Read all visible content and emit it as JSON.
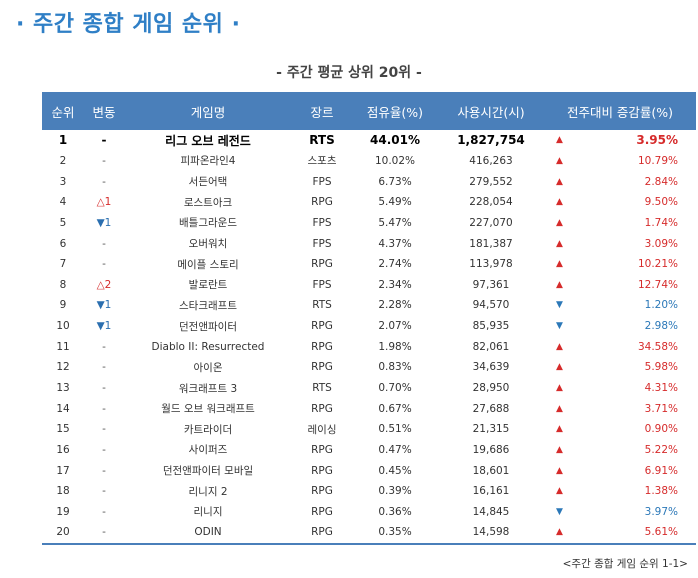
{
  "title": "· 주간 종합 게임 순위 ·",
  "subtitle": "- 주간 평균 상위 20위 -",
  "headers": {
    "rank": "순위",
    "change": "변동",
    "game": "게임명",
    "genre": "장르",
    "share": "점유율(%)",
    "hours": "사용시간(시)",
    "trend": "전주대비 증감률(%)"
  },
  "rows": [
    {
      "rank": "1",
      "change": "-",
      "change_dir": "same",
      "game": "리그 오브 레전드",
      "genre": "RTS",
      "share": "44.01%",
      "hours": "1,827,754",
      "trend": "up",
      "rate": "3.95%"
    },
    {
      "rank": "2",
      "change": "-",
      "change_dir": "same",
      "game": "피파온라인4",
      "genre": "스포츠",
      "share": "10.02%",
      "hours": "416,263",
      "trend": "up",
      "rate": "10.79%"
    },
    {
      "rank": "3",
      "change": "-",
      "change_dir": "same",
      "game": "서든어택",
      "genre": "FPS",
      "share": "6.73%",
      "hours": "279,552",
      "trend": "up",
      "rate": "2.84%"
    },
    {
      "rank": "4",
      "change": "△1",
      "change_dir": "up",
      "game": "로스트아크",
      "genre": "RPG",
      "share": "5.49%",
      "hours": "228,054",
      "trend": "up",
      "rate": "9.50%"
    },
    {
      "rank": "5",
      "change": "▼1",
      "change_dir": "down",
      "game": "배틀그라운드",
      "genre": "FPS",
      "share": "5.47%",
      "hours": "227,070",
      "trend": "up",
      "rate": "1.74%"
    },
    {
      "rank": "6",
      "change": "-",
      "change_dir": "same",
      "game": "오버워치",
      "genre": "FPS",
      "share": "4.37%",
      "hours": "181,387",
      "trend": "up",
      "rate": "3.09%"
    },
    {
      "rank": "7",
      "change": "-",
      "change_dir": "same",
      "game": "메이플 스토리",
      "genre": "RPG",
      "share": "2.74%",
      "hours": "113,978",
      "trend": "up",
      "rate": "10.21%"
    },
    {
      "rank": "8",
      "change": "△2",
      "change_dir": "up",
      "game": "발로란트",
      "genre": "FPS",
      "share": "2.34%",
      "hours": "97,361",
      "trend": "up",
      "rate": "12.74%"
    },
    {
      "rank": "9",
      "change": "▼1",
      "change_dir": "down",
      "game": "스타크래프트",
      "genre": "RTS",
      "share": "2.28%",
      "hours": "94,570",
      "trend": "down",
      "rate": "1.20%"
    },
    {
      "rank": "10",
      "change": "▼1",
      "change_dir": "down",
      "game": "던전앤파이터",
      "genre": "RPG",
      "share": "2.07%",
      "hours": "85,935",
      "trend": "down",
      "rate": "2.98%"
    },
    {
      "rank": "11",
      "change": "-",
      "change_dir": "same",
      "game": "Diablo II: Resurrected",
      "genre": "RPG",
      "share": "1.98%",
      "hours": "82,061",
      "trend": "up",
      "rate": "34.58%"
    },
    {
      "rank": "12",
      "change": "-",
      "change_dir": "same",
      "game": "아이온",
      "genre": "RPG",
      "share": "0.83%",
      "hours": "34,639",
      "trend": "up",
      "rate": "5.98%"
    },
    {
      "rank": "13",
      "change": "-",
      "change_dir": "same",
      "game": "워크래프트 3",
      "genre": "RTS",
      "share": "0.70%",
      "hours": "28,950",
      "trend": "up",
      "rate": "4.31%"
    },
    {
      "rank": "14",
      "change": "-",
      "change_dir": "same",
      "game": "월드 오브 워크래프트",
      "genre": "RPG",
      "share": "0.67%",
      "hours": "27,688",
      "trend": "up",
      "rate": "3.71%"
    },
    {
      "rank": "15",
      "change": "-",
      "change_dir": "same",
      "game": "카트라이더",
      "genre": "레이싱",
      "share": "0.51%",
      "hours": "21,315",
      "trend": "up",
      "rate": "0.90%"
    },
    {
      "rank": "16",
      "change": "-",
      "change_dir": "same",
      "game": "사이퍼즈",
      "genre": "RPG",
      "share": "0.47%",
      "hours": "19,686",
      "trend": "up",
      "rate": "5.22%"
    },
    {
      "rank": "17",
      "change": "-",
      "change_dir": "same",
      "game": "던전앤파이터 모바일",
      "genre": "RPG",
      "share": "0.45%",
      "hours": "18,601",
      "trend": "up",
      "rate": "6.91%"
    },
    {
      "rank": "18",
      "change": "-",
      "change_dir": "same",
      "game": "리니지 2",
      "genre": "RPG",
      "share": "0.39%",
      "hours": "16,161",
      "trend": "up",
      "rate": "1.38%"
    },
    {
      "rank": "19",
      "change": "-",
      "change_dir": "same",
      "game": "리니지",
      "genre": "RPG",
      "share": "0.36%",
      "hours": "14,845",
      "trend": "down",
      "rate": "3.97%"
    },
    {
      "rank": "20",
      "change": "-",
      "change_dir": "same",
      "game": "ODIN",
      "genre": "RPG",
      "share": "0.35%",
      "hours": "14,598",
      "trend": "up",
      "rate": "5.61%"
    }
  ],
  "caption": "<주간 종합 게임 순위 1-1>",
  "colors": {
    "accent": "#2f7fc6",
    "header_bg": "#4a7fba",
    "up": "#d62b2b",
    "down": "#2b78b8"
  }
}
